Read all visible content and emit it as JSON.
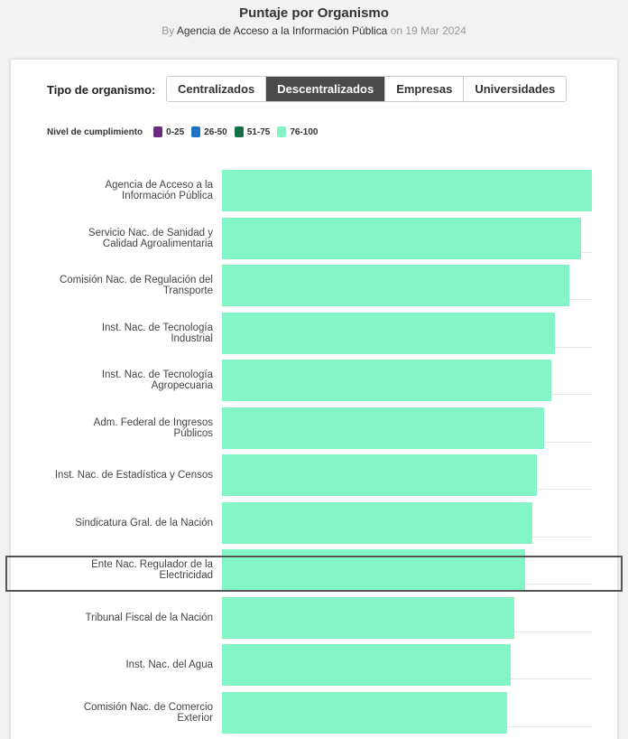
{
  "header": {
    "title": "Puntaje por Organismo",
    "by_prefix": "By",
    "source": "Agencia de Acceso a la Información Pública",
    "date_prefix": "on",
    "date": "19 Mar 2024"
  },
  "filter": {
    "label": "Tipo de organismo:",
    "tabs": [
      {
        "label": "Centralizados",
        "active": false
      },
      {
        "label": "Descentralizados",
        "active": true
      },
      {
        "label": "Empresas",
        "active": false
      },
      {
        "label": "Universidades",
        "active": false
      }
    ]
  },
  "legend": {
    "title": "Nivel de cumplimiento",
    "items": [
      {
        "label": "0-25",
        "color": "#6a2c82"
      },
      {
        "label": "26-50",
        "color": "#1f73c3"
      },
      {
        "label": "51-75",
        "color": "#137048"
      },
      {
        "label": "76-100",
        "color": "#83f5c6"
      }
    ]
  },
  "chart_data": {
    "type": "bar",
    "orientation": "horizontal",
    "title": "Puntaje por Organismo",
    "xlim": [
      0,
      100
    ],
    "bar_color": "#83f5c6",
    "categories": [
      [
        "Agencia de Acceso a la",
        "Información Pública"
      ],
      [
        "Servicio Nac. de Sanidad y",
        "Calidad Agroalimentaria"
      ],
      [
        "Comisión Nac. de Regulación del",
        "Transporte"
      ],
      [
        "Inst. Nac. de Tecnología",
        "Industrial"
      ],
      [
        "Inst. Nac. de Tecnología",
        "Agropecuaria"
      ],
      [
        "Adm. Federal de Ingresos",
        "Públicos"
      ],
      [
        "Inst. Nac. de Estadística y Censos"
      ],
      [
        "Sindicatura Gral. de la Nación"
      ],
      [
        "Ente Nac. Regulador de la",
        "Electricidad"
      ],
      [
        "Tribunal Fiscal de la Nación"
      ],
      [
        "Inst. Nac. del Agua"
      ],
      [
        "Comisión Nac. de Comercio",
        "Exterior"
      ]
    ],
    "values": [
      100,
      97,
      94,
      90,
      89,
      87,
      85,
      84,
      82,
      79,
      78,
      77
    ],
    "highlighted_index": 8
  }
}
